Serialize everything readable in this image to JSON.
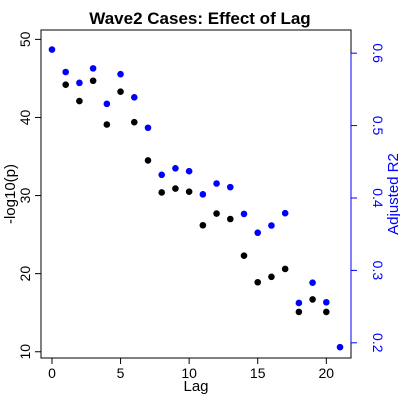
{
  "chart_data": {
    "type": "scatter",
    "title": "Wave2 Cases: Effect of Lag",
    "xlabel": "Lag",
    "ylabel_left": "-log10(p)",
    "ylabel_right": "Adjusted R2",
    "xlim": [
      -0.8,
      21.8
    ],
    "ylim_left": [
      9.2,
      51.2
    ],
    "ylim_right": [
      0.179,
      0.632
    ],
    "x_ticks": [
      0,
      5,
      10,
      15,
      20
    ],
    "y_ticks_left": [
      10,
      20,
      30,
      40,
      50
    ],
    "y_ticks_right": [
      0.2,
      0.3,
      0.4,
      0.5,
      0.6
    ],
    "y_tick_labels_right": [
      "0.2",
      "0.3",
      "0.4",
      "0.5",
      "0.6"
    ],
    "grid": false,
    "colors": {
      "left_series": "#000000",
      "right_series": "#0000ff",
      "right_axis": "#0000ff"
    },
    "series": [
      {
        "axis": "left",
        "color": "#000000",
        "points": [
          [
            1,
            44.2
          ],
          [
            2,
            42.1
          ],
          [
            3,
            44.7
          ],
          [
            4,
            39.1
          ],
          [
            5,
            43.3
          ],
          [
            6,
            39.4
          ],
          [
            7,
            34.5
          ],
          [
            8,
            30.4
          ],
          [
            9,
            30.9
          ],
          [
            10,
            30.5
          ],
          [
            11,
            26.2
          ],
          [
            12,
            27.7
          ],
          [
            13,
            27.0
          ],
          [
            14,
            22.3
          ],
          [
            15,
            18.9
          ],
          [
            16,
            19.6
          ],
          [
            17,
            20.6
          ],
          [
            18,
            15.1
          ],
          [
            19,
            16.7
          ],
          [
            20,
            15.1
          ]
        ]
      },
      {
        "axis": "right",
        "color": "#0000ff",
        "points": [
          [
            0,
            0.605
          ],
          [
            1,
            0.574
          ],
          [
            2,
            0.559
          ],
          [
            3,
            0.579
          ],
          [
            4,
            0.53
          ],
          [
            5,
            0.571
          ],
          [
            6,
            0.539
          ],
          [
            7,
            0.497
          ],
          [
            8,
            0.432
          ],
          [
            9,
            0.441
          ],
          [
            10,
            0.437
          ],
          [
            11,
            0.405
          ],
          [
            12,
            0.42
          ],
          [
            13,
            0.415
          ],
          [
            14,
            0.378
          ],
          [
            15,
            0.352
          ],
          [
            16,
            0.362
          ],
          [
            17,
            0.379
          ],
          [
            18,
            0.255
          ],
          [
            19,
            0.283
          ],
          [
            20,
            0.256
          ],
          [
            21,
            0.194
          ]
        ]
      }
    ]
  }
}
